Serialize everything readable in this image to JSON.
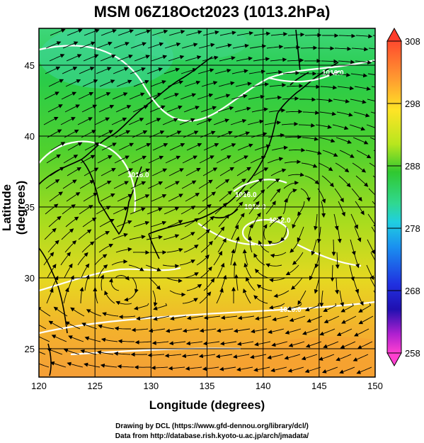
{
  "title": "MSM 06Z18Oct2023 (1013.2hPa)",
  "x_axis": {
    "label": "Longitude (degrees)",
    "ticks": [
      "120",
      "125",
      "130",
      "135",
      "140",
      "145",
      "150"
    ]
  },
  "y_axis": {
    "label": "Latitude  (degrees)",
    "ticks": [
      "25",
      "30",
      "35",
      "40",
      "45"
    ]
  },
  "colorbar": {
    "ticks": [
      "258",
      "268",
      "278",
      "288",
      "298",
      "308"
    ]
  },
  "contour_labels": [
    "1016.0",
    "1016.0",
    "1016.0",
    "1012.0",
    "1012.0",
    "1020.0"
  ],
  "credits": {
    "line1": "Drawing by DCL (https://www.gfd-dennou.org/library/dcl/)",
    "line2": "Data from http://database.rish.kyoto-u.ac.jp/arch/jmadata/"
  },
  "chart_data": {
    "type": "heatmap",
    "xlim": [
      120,
      150
    ],
    "ylim": [
      23,
      47.6
    ],
    "colorbar_range": [
      258,
      308
    ],
    "grid": true,
    "overlays": [
      "streamlines",
      "coastlines",
      "white contour lines"
    ]
  }
}
